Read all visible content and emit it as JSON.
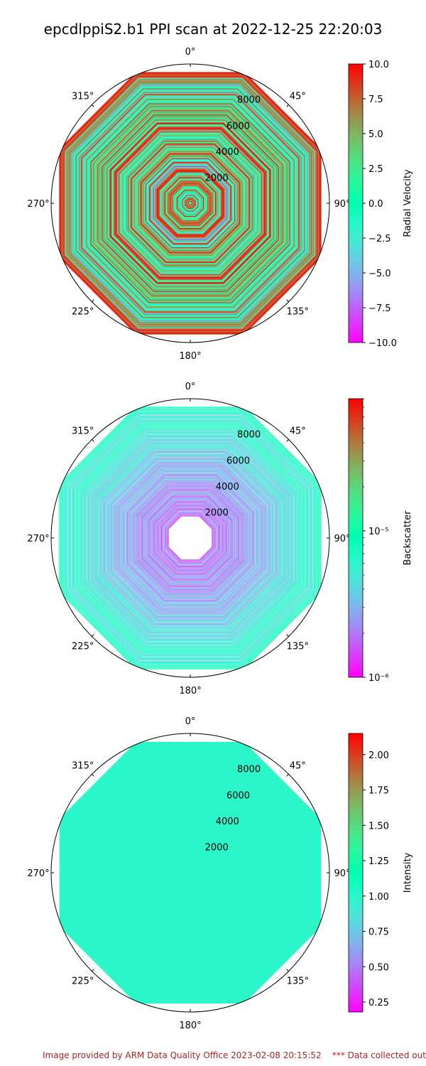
{
  "title": "epcdlppiS2.b1 PPI scan at 2022-12-25 22:20:03",
  "footer": {
    "left": "Image provided by ARM Data Quality Office 2023-02-08 20:15:52",
    "right": "*** Data collected outside"
  },
  "chart_data": [
    {
      "type": "polar-ppi",
      "theta_ticks": [
        "0°",
        "45°",
        "90°",
        "135°",
        "180°",
        "225°",
        "270°",
        "315°"
      ],
      "r_ticks": [
        2000,
        4000,
        6000,
        8000
      ],
      "r_max": 9900,
      "colorbar": {
        "label": "Radial Velocity",
        "scale": "linear",
        "range": [
          -10.0,
          10.0
        ],
        "ticks": [
          "10.0",
          "7.5",
          "5.0",
          "2.5",
          "0.0",
          "−2.5",
          "−5.0",
          "−7.5",
          "−10.0"
        ]
      },
      "pattern": "mixed-velocity"
    },
    {
      "type": "polar-ppi",
      "theta_ticks": [
        "0°",
        "45°",
        "90°",
        "135°",
        "180°",
        "225°",
        "270°",
        "315°"
      ],
      "r_ticks": [
        2000,
        4000,
        6000,
        8000
      ],
      "r_max": 9900,
      "colorbar": {
        "label": "Backscatter",
        "scale": "log",
        "range": [
          1e-06,
          8e-05
        ],
        "ticks": [
          "10⁻⁵",
          "10⁻⁶"
        ]
      },
      "pattern": "low-backscatter"
    },
    {
      "type": "polar-ppi",
      "theta_ticks": [
        "0°",
        "45°",
        "90°",
        "135°",
        "180°",
        "225°",
        "270°",
        "315°"
      ],
      "r_ticks": [
        2000,
        4000,
        6000,
        8000
      ],
      "r_max": 9900,
      "colorbar": {
        "label": "Intensity",
        "scale": "linear",
        "range": [
          0.18,
          2.15
        ],
        "ticks": [
          "2.00",
          "1.75",
          "1.50",
          "1.25",
          "1.00",
          "0.75",
          "0.50",
          "0.25"
        ]
      },
      "pattern": "uniform",
      "uniform_value": 1.0
    }
  ],
  "colors": {
    "footer": "#b22222",
    "colormap": "rainbow"
  }
}
